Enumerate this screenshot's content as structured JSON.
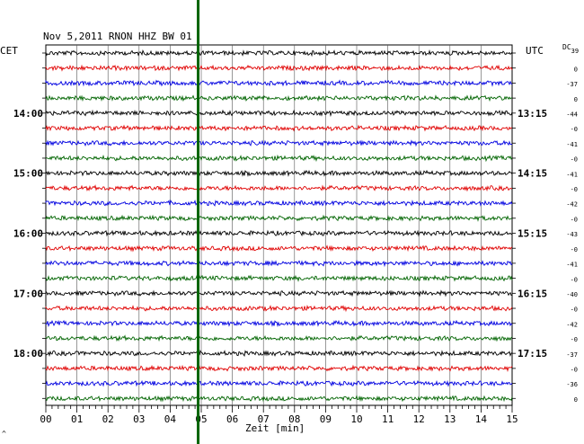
{
  "chart_data": {
    "type": "line",
    "title": "Nov 5,2011   RNON HHZ BW 01",
    "left_axis_title": "CET",
    "right_axis_title": "UTC",
    "dc_header": "DC",
    "dc_header_sub": "39",
    "xlabel": "Zeit [min]",
    "x_ticks": [
      "00",
      "01",
      "02",
      "03",
      "04",
      "05",
      "06",
      "07",
      "08",
      "09",
      "10",
      "11",
      "12",
      "13",
      "14",
      "15"
    ],
    "xlim": [
      0,
      15
    ],
    "left_hour_labels": [
      {
        "row": 4,
        "text": "14:00"
      },
      {
        "row": 8,
        "text": "15:00"
      },
      {
        "row": 12,
        "text": "16:00"
      },
      {
        "row": 16,
        "text": "17:00"
      },
      {
        "row": 20,
        "text": "18:00"
      }
    ],
    "right_hour_labels": [
      {
        "row": 4,
        "text": "13:15"
      },
      {
        "row": 8,
        "text": "14:15"
      },
      {
        "row": 12,
        "text": "15:15"
      },
      {
        "row": 16,
        "text": "16:15"
      },
      {
        "row": 20,
        "text": "17:15"
      }
    ],
    "dc_offsets": [
      "0",
      "-37",
      "0",
      "-44",
      "-0",
      "-41",
      "-0",
      "-41",
      "-0",
      "-42",
      "-0",
      "-43",
      "-0",
      "-41",
      "-0",
      "-40",
      "-0",
      "-42",
      "-0",
      "-37",
      "-0",
      "-36",
      "0"
    ],
    "traces": {
      "count": 24,
      "color_cycle": [
        "#000000",
        "#e00000",
        "#0000e0",
        "#006400"
      ],
      "minutes_per_trace": 15
    },
    "event_marker": {
      "minute": 4.9,
      "color": "#006400"
    },
    "grid": true
  },
  "corner_mark": "^"
}
